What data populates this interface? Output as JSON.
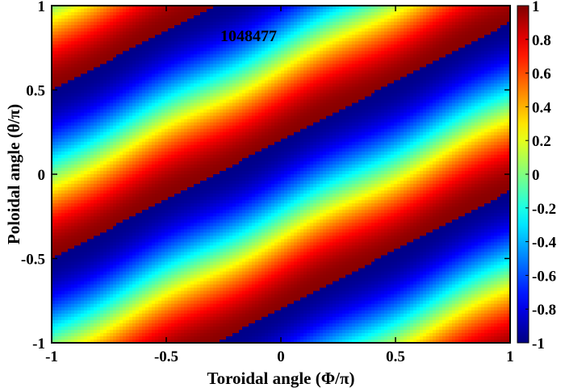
{
  "chart_data": {
    "type": "heatmap",
    "title": "",
    "annotation": "1048477",
    "xlabel": "Toroidal angle (Φ/π)",
    "ylabel": "Poloidal angle (θ/π)",
    "xlim": [
      -1,
      1
    ],
    "ylim": [
      -1,
      1
    ],
    "xticks": [
      -1,
      -0.5,
      0,
      0.5,
      1
    ],
    "xtick_labels": [
      "-1",
      "-0.5",
      "0",
      "0.5",
      "1"
    ],
    "yticks": [
      -1,
      -0.5,
      0,
      0.5,
      1
    ],
    "ytick_labels": [
      "-1",
      "-0.5",
      "0",
      "0.5",
      "1"
    ],
    "colorbar": {
      "range": [
        -1,
        1
      ],
      "ticks": [
        1,
        0.8,
        0.6,
        0.4,
        0.2,
        0,
        -0.2,
        -0.4,
        -0.6,
        -0.8,
        -1
      ],
      "tick_labels": [
        "1",
        "0.8",
        "0.6",
        "0.4",
        "0.2",
        "0",
        "-0.2",
        "-0.4",
        "-0.6",
        "-0.8",
        "-1"
      ],
      "colormap": "jet"
    },
    "field": {
      "description_of_pattern": "helical stripes, value = cos(2π(θ − 0.7Φ) + 0.8π) with sawtooth phase jumps",
      "poloidal_mode_m": 1,
      "slope_dtheta_dphi": 0.7,
      "phase_offset_pi": 0.8
    },
    "grid": false,
    "colors": {
      "jet_stops": [
        "#00008f",
        "#0000ff",
        "#0080ff",
        "#00ffff",
        "#80ff80",
        "#ffff00",
        "#ff8000",
        "#ff0000",
        "#800000"
      ]
    }
  }
}
